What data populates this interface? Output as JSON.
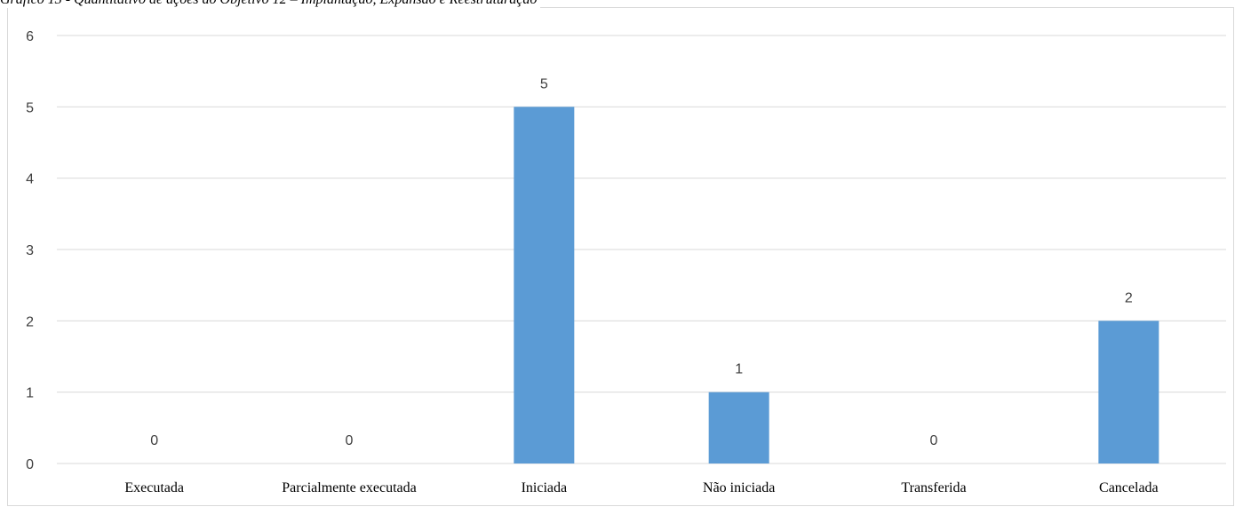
{
  "chart_data": {
    "type": "bar",
    "title": "Gráfico 13 - Quantitativo de ações do Objetivo 12 – Implantação, Expansão e Reestruturação",
    "categories": [
      "Executada",
      "Parcialmente executada",
      "Iniciada",
      "Não iniciada",
      "Transferida",
      "Cancelada"
    ],
    "values": [
      0,
      0,
      5,
      1,
      0,
      2
    ],
    "data_labels": [
      "0",
      "0",
      "5",
      "1",
      "0",
      "2"
    ],
    "ylim": [
      0,
      6
    ],
    "yticks": [
      "0",
      "1",
      "2",
      "3",
      "4",
      "5",
      "6"
    ],
    "grid": true,
    "legend": "none",
    "colors": {
      "bar": "#5b9bd5",
      "grid": "#d9d9d9",
      "tick_text": "#404040"
    }
  }
}
